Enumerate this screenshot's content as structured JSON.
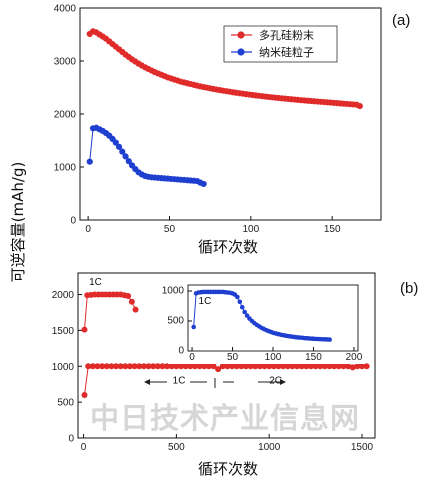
{
  "figure": {
    "ylabel": "可逆容量(mAh/g)",
    "watermark": "中日技术产业信息网"
  },
  "colors": {
    "red": "#e02b2b",
    "blue": "#1f3fd0"
  },
  "chart_data": [
    {
      "id": "a",
      "type": "scatter",
      "panel_label": "(a)",
      "xlabel": "循环次数",
      "xlim": [
        -5,
        180
      ],
      "ylim": [
        0,
        4000
      ],
      "xticks": [
        0,
        50,
        100,
        150
      ],
      "yticks": [
        0,
        1000,
        2000,
        3000,
        4000
      ],
      "legend_position": "top-right",
      "series": [
        {
          "name": "多孔硅粉末",
          "color": "red",
          "x": [
            1,
            3,
            5,
            7,
            9,
            11,
            13,
            15,
            17,
            19,
            21,
            23,
            25,
            27,
            29,
            31,
            33,
            35,
            37,
            39,
            41,
            43,
            45,
            47,
            49,
            51,
            53,
            55,
            57,
            59,
            61,
            63,
            65,
            67,
            69,
            71,
            73,
            75,
            77,
            79,
            81,
            83,
            85,
            87,
            89,
            91,
            93,
            95,
            97,
            99,
            101,
            103,
            105,
            107,
            109,
            111,
            113,
            115,
            117,
            119,
            121,
            123,
            125,
            127,
            129,
            131,
            133,
            135,
            137,
            139,
            141,
            143,
            145,
            147,
            149,
            151,
            153,
            155,
            157,
            159,
            161,
            163,
            165,
            167
          ],
          "y": [
            3510,
            3560,
            3540,
            3500,
            3460,
            3420,
            3370,
            3320,
            3270,
            3220,
            3170,
            3120,
            3075,
            3030,
            2990,
            2950,
            2915,
            2880,
            2850,
            2820,
            2790,
            2765,
            2740,
            2715,
            2690,
            2670,
            2650,
            2630,
            2610,
            2595,
            2580,
            2565,
            2550,
            2535,
            2520,
            2508,
            2496,
            2484,
            2472,
            2461,
            2450,
            2440,
            2430,
            2420,
            2410,
            2401,
            2392,
            2383,
            2375,
            2367,
            2359,
            2351,
            2343,
            2336,
            2329,
            2322,
            2315,
            2308,
            2302,
            2296,
            2290,
            2284,
            2278,
            2272,
            2266,
            2260,
            2255,
            2250,
            2245,
            2240,
            2235,
            2230,
            2225,
            2220,
            2215,
            2210,
            2205,
            2200,
            2195,
            2190,
            2185,
            2180,
            2175,
            2150
          ]
        },
        {
          "name": "纳米硅粒子",
          "color": "blue",
          "x": [
            1,
            3,
            5,
            7,
            9,
            11,
            13,
            15,
            17,
            19,
            21,
            23,
            25,
            27,
            29,
            31,
            33,
            35,
            37,
            39,
            41,
            43,
            45,
            47,
            49,
            51,
            53,
            55,
            57,
            59,
            61,
            63,
            65,
            67,
            69,
            71
          ],
          "y": [
            1100,
            1730,
            1740,
            1710,
            1680,
            1640,
            1590,
            1530,
            1460,
            1380,
            1290,
            1200,
            1110,
            1030,
            960,
            900,
            860,
            830,
            815,
            805,
            800,
            795,
            790,
            785,
            780,
            775,
            770,
            765,
            760,
            755,
            750,
            745,
            740,
            735,
            705,
            680
          ]
        }
      ]
    },
    {
      "id": "b",
      "type": "scatter",
      "panel_label": "(b)",
      "xlabel": "循环次数",
      "xlim": [
        -30,
        1570
      ],
      "ylim": [
        0,
        2300
      ],
      "xticks": [
        0,
        500,
        1000,
        1500
      ],
      "yticks": [
        0,
        500,
        1000,
        1500,
        2000
      ],
      "annotations": [
        {
          "text": "1C",
          "x": 30,
          "y": 2130
        },
        {
          "text": "1C",
          "x": 480,
          "y": 760
        },
        {
          "text": "2C",
          "x": 1000,
          "y": 760
        }
      ],
      "series": [
        {
          "name": "",
          "color": "red",
          "x": [
            5,
            20,
            40,
            60,
            80,
            100,
            120,
            140,
            160,
            180,
            200,
            220,
            240,
            260,
            280
          ],
          "y": [
            1510,
            1990,
            1995,
            2000,
            2000,
            2000,
            2000,
            2000,
            2000,
            2000,
            2000,
            1990,
            1980,
            1900,
            1790
          ]
        },
        {
          "name": "",
          "color": "red",
          "x": [
            5,
            25,
            50,
            75,
            100,
            125,
            150,
            175,
            200,
            225,
            250,
            275,
            300,
            325,
            350,
            375,
            400,
            425,
            450,
            475,
            500,
            525,
            550,
            575,
            600,
            625,
            650,
            675,
            700,
            725,
            750,
            775,
            800,
            825,
            850,
            875,
            900,
            925,
            950,
            975,
            1000,
            1025,
            1050,
            1075,
            1100,
            1125,
            1150,
            1175,
            1200,
            1225,
            1250,
            1275,
            1300,
            1325,
            1350,
            1375,
            1400,
            1425,
            1450,
            1475,
            1500,
            1525
          ],
          "y": [
            600,
            1000,
            1000,
            1000,
            1000,
            1000,
            1000,
            1000,
            1000,
            1000,
            1000,
            1000,
            1000,
            1000,
            1000,
            1000,
            1000,
            1000,
            1000,
            1000,
            1000,
            1000,
            1000,
            1000,
            1000,
            1000,
            1000,
            1000,
            1000,
            960,
            1000,
            1000,
            1000,
            1000,
            1000,
            1000,
            1000,
            1000,
            1000,
            1000,
            1000,
            1000,
            1000,
            1000,
            1000,
            1000,
            1000,
            1000,
            1000,
            1000,
            1000,
            1000,
            1000,
            1000,
            1000,
            1000,
            1000,
            1000,
            985,
            1000,
            1000,
            1000
          ]
        }
      ],
      "inset": {
        "type": "scatter",
        "annotation": {
          "text": "1C",
          "x": 8,
          "y": 780
        },
        "xlim": [
          -5,
          205
        ],
        "ylim": [
          0,
          1100
        ],
        "xticks": [
          0,
          50,
          100,
          150,
          200
        ],
        "yticks": [
          0,
          500,
          1000
        ],
        "series": [
          {
            "name": "",
            "color": "blue",
            "x": [
              2,
              5,
              8,
              11,
              14,
              17,
              20,
              23,
              26,
              29,
              32,
              35,
              38,
              41,
              44,
              47,
              50,
              53,
              56,
              59,
              62,
              65,
              68,
              71,
              74,
              77,
              80,
              83,
              86,
              89,
              92,
              95,
              98,
              101,
              104,
              107,
              110,
              113,
              116,
              119,
              122,
              125,
              128,
              131,
              134,
              137,
              140,
              143,
              146,
              149,
              152,
              155,
              158,
              161,
              164,
              167,
              170
            ],
            "y": [
              400,
              960,
              975,
              980,
              985,
              985,
              985,
              985,
              985,
              985,
              985,
              985,
              985,
              980,
              975,
              970,
              960,
              940,
              900,
              820,
              730,
              650,
              590,
              540,
              500,
              465,
              435,
              410,
              385,
              365,
              345,
              330,
              315,
              300,
              290,
              280,
              270,
              262,
              255,
              248,
              242,
              236,
              231,
              226,
              222,
              218,
              214,
              211,
              208,
              205,
              202,
              200,
              198,
              196,
              194,
              192,
              190
            ]
          }
        ]
      }
    }
  ]
}
